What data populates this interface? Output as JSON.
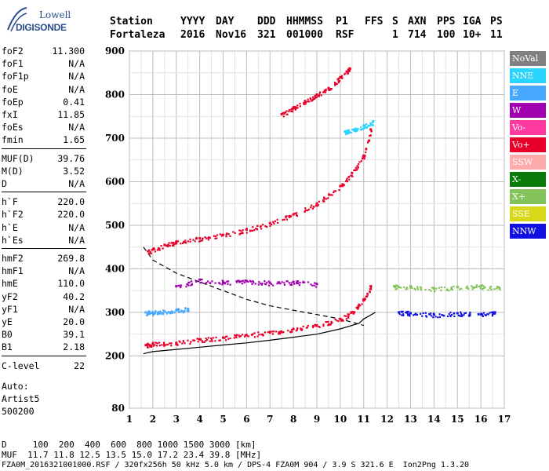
{
  "logo": {
    "line1": "Lowell",
    "line2": "DIGISONDE"
  },
  "header": {
    "labels": [
      "Station",
      "YYYY",
      "DAY",
      "DDD",
      "HHMMSS",
      "P1",
      "FFS",
      "S",
      "AXN",
      "PPS",
      "IGA",
      "PS"
    ],
    "values": [
      "Fortaleza",
      "2016",
      "Nov16",
      "321",
      "001000",
      "RSF",
      "",
      "1",
      "714",
      "100",
      "10+",
      "11"
    ]
  },
  "scaled_params": [
    [
      {
        "k": "foF2",
        "v": "11.300"
      },
      {
        "k": "foF1",
        "v": "N/A"
      },
      {
        "k": "foF1p",
        "v": "N/A"
      },
      {
        "k": "foE",
        "v": "N/A"
      },
      {
        "k": "foEp",
        "v": "0.41"
      },
      {
        "k": "fxI",
        "v": "11.85"
      },
      {
        "k": "foEs",
        "v": "N/A"
      },
      {
        "k": "fmin",
        "v": "1.65"
      }
    ],
    [
      {
        "k": "MUF(D)",
        "v": "39.76"
      },
      {
        "k": "M(D)",
        "v": "3.52"
      },
      {
        "k": "D",
        "v": "N/A"
      }
    ],
    [
      {
        "k": "h`F",
        "v": "220.0"
      },
      {
        "k": "h`F2",
        "v": "220.0"
      },
      {
        "k": "h`E",
        "v": "N/A"
      },
      {
        "k": "h`Es",
        "v": "N/A"
      }
    ],
    [
      {
        "k": "hmF2",
        "v": "269.8"
      },
      {
        "k": "hmF1",
        "v": "N/A"
      },
      {
        "k": "hmE",
        "v": "110.0"
      },
      {
        "k": "yF2",
        "v": "40.2"
      },
      {
        "k": "yF1",
        "v": "N/A"
      },
      {
        "k": "yE",
        "v": "20.0"
      },
      {
        "k": "B0",
        "v": "39.1"
      },
      {
        "k": "B1",
        "v": "2.18"
      }
    ],
    [
      {
        "k": "C-level",
        "v": "22"
      }
    ]
  ],
  "autoscaling": {
    "label": "Auto:",
    "artist": "Artist5",
    "version": "500200"
  },
  "legend": [
    {
      "label": "NoVal",
      "color": "#808080"
    },
    {
      "label": "NNE",
      "color": "#2ad4ff"
    },
    {
      "label": "E",
      "color": "#46a8ff"
    },
    {
      "label": "W",
      "color": "#a000b0"
    },
    {
      "label": "Vo-",
      "color": "#ff3aa0"
    },
    {
      "label": "Vo+",
      "color": "#e8002a"
    },
    {
      "label": "SSW",
      "color": "#ffaaaa"
    },
    {
      "label": "X-",
      "color": "#0a7a0a"
    },
    {
      "label": "X+",
      "color": "#84c25a"
    },
    {
      "label": "SSE",
      "color": "#d8d818"
    },
    {
      "label": "NNW",
      "color": "#1010e0"
    }
  ],
  "footer": {
    "line1": "D     100  200  400  600  800 1000 1500 3000 [km]",
    "line2": "MUF  11.7 11.8 12.5 13.5 15.0 17.2 23.4 39.8 [MHz]",
    "line3": "FZA0M_2016321001000.RSF / 320fx256h 50 kHz 5.0 km / DPS-4 FZA0M 904 / 3.9 S 321.6 E  Ion2Png 1.3.20"
  },
  "chart_data": {
    "type": "scatter",
    "x_ticks": [
      1,
      2,
      3,
      4,
      5,
      6,
      7,
      8,
      9,
      10,
      11,
      12,
      13,
      14,
      15,
      16,
      17
    ],
    "y_ticks": [
      80,
      200,
      300,
      400,
      500,
      600,
      700,
      800,
      900
    ],
    "xlim": [
      1,
      17
    ],
    "ylim": [
      80,
      900
    ],
    "grid": true,
    "legend_position": "right",
    "series": [
      {
        "name": "Vo+",
        "color": "#e8002a",
        "x": [
          1.7,
          2,
          3,
          4,
          5,
          6,
          7,
          8,
          9,
          10,
          10.5,
          11,
          11.3
        ],
        "y": [
          225,
          228,
          230,
          238,
          242,
          248,
          255,
          262,
          270,
          285,
          300,
          330,
          360
        ]
      },
      {
        "name": "Vo+",
        "color": "#e8002a",
        "x": [
          1.8,
          2.5,
          3,
          4,
          5,
          6,
          7,
          8,
          9,
          10,
          10.5,
          11,
          11.3
        ],
        "y": [
          440,
          455,
          462,
          470,
          478,
          490,
          505,
          525,
          550,
          590,
          620,
          660,
          720
        ]
      },
      {
        "name": "Vo+",
        "color": "#e8002a",
        "x": [
          7.5,
          8,
          8.5,
          9,
          9.5,
          10,
          10.4
        ],
        "y": [
          755,
          770,
          785,
          800,
          815,
          840,
          860
        ]
      },
      {
        "name": "NNE",
        "color": "#2ad4ff",
        "x": [
          10.2,
          10.6,
          11,
          11.4
        ],
        "y": [
          715,
          720,
          728,
          738
        ]
      },
      {
        "name": "E",
        "color": "#46a8ff",
        "x": [
          1.7,
          2,
          2.5,
          3,
          3.5
        ],
        "y": [
          300,
          300,
          302,
          305,
          308
        ]
      },
      {
        "name": "W",
        "color": "#a000b0",
        "x": [
          3,
          4,
          5,
          6,
          7,
          8,
          9
        ],
        "y": [
          360,
          375,
          370,
          372,
          368,
          370,
          365
        ]
      },
      {
        "name": "NNW",
        "color": "#1010e0",
        "x": [
          12.5,
          13,
          14,
          15,
          16,
          16.6
        ],
        "y": [
          300,
          298,
          295,
          298,
          296,
          300
        ]
      },
      {
        "name": "X+",
        "color": "#84c25a",
        "x": [
          12.3,
          13,
          14,
          15,
          16,
          16.8
        ],
        "y": [
          360,
          360,
          355,
          358,
          360,
          355
        ]
      }
    ],
    "model_curves": [
      {
        "style": "solid",
        "x": [
          1.6,
          2,
          3,
          4,
          5,
          6,
          7,
          8,
          9,
          10,
          10.8,
          11,
          11.5
        ],
        "y": [
          205,
          210,
          215,
          220,
          225,
          230,
          236,
          243,
          250,
          262,
          275,
          285,
          300
        ]
      },
      {
        "style": "dashed",
        "x": [
          1.6,
          2,
          3,
          4,
          5,
          6,
          7,
          8,
          9,
          10,
          11
        ],
        "y": [
          450,
          420,
          390,
          370,
          350,
          330,
          315,
          305,
          295,
          285,
          270
        ]
      }
    ]
  }
}
